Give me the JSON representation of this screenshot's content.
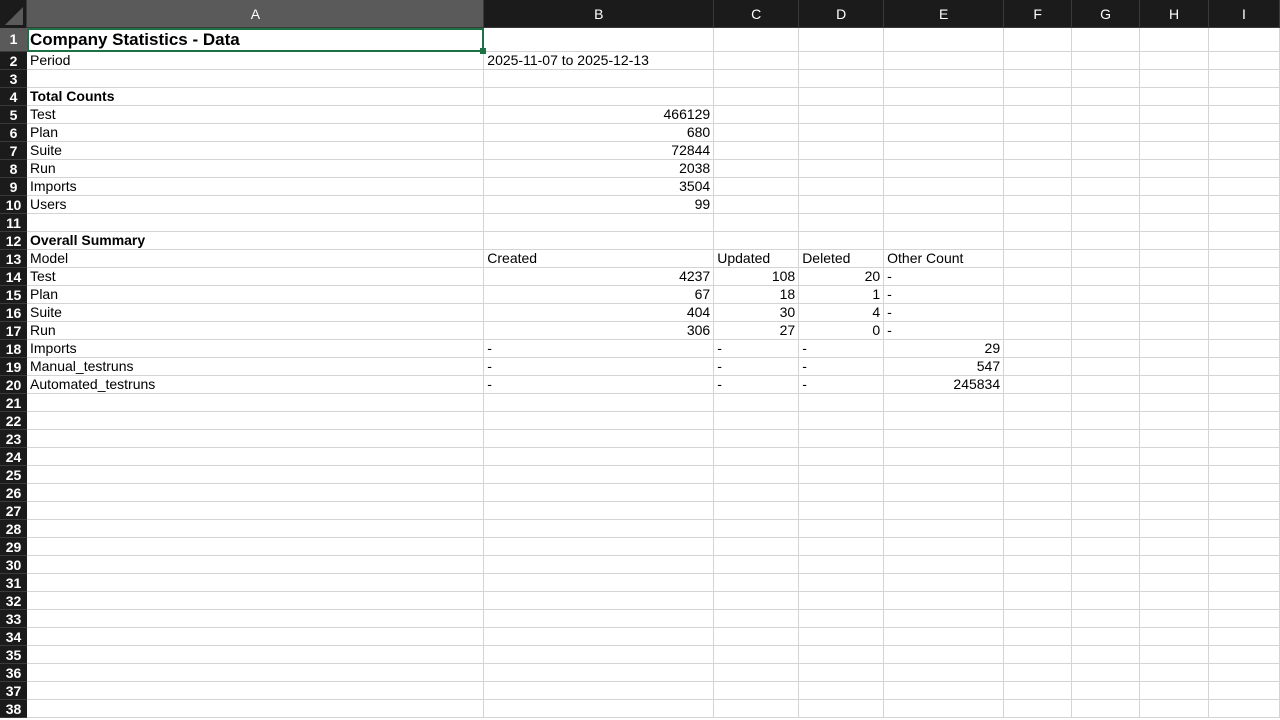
{
  "columns": [
    "A",
    "B",
    "C",
    "D",
    "E",
    "F",
    "G",
    "H",
    "I"
  ],
  "selected_column": "A",
  "active_cell": "A1",
  "row_count": 38,
  "rows": {
    "1": [
      "Company Statistics - Data"
    ],
    "2": [
      "Period",
      "2025-11-07 to 2025-12-13"
    ],
    "4": [
      "Total Counts"
    ],
    "5": [
      "Test",
      466129
    ],
    "6": [
      "Plan",
      680
    ],
    "7": [
      "Suite",
      72844
    ],
    "8": [
      "Run",
      2038
    ],
    "9": [
      "Imports",
      3504
    ],
    "10": [
      "Users",
      99
    ],
    "12": [
      "Overall Summary"
    ],
    "13": [
      "Model",
      "Created",
      "Updated",
      "Deleted",
      "Other Count"
    ],
    "14": [
      "Test",
      4237,
      108,
      20,
      "-"
    ],
    "15": [
      "Plan",
      67,
      18,
      1,
      "-"
    ],
    "16": [
      "Suite",
      404,
      30,
      4,
      "-"
    ],
    "17": [
      "Run",
      306,
      27,
      0,
      "-"
    ],
    "18": [
      "Imports",
      "-",
      "-",
      "-",
      29
    ],
    "19": [
      "Manual_testruns",
      "-",
      "-",
      "-",
      547
    ],
    "20": [
      "Automated_testruns",
      "-",
      "-",
      "-",
      245834
    ]
  },
  "bold_rows": [
    "4",
    "12"
  ],
  "title_row": "1",
  "colors": {
    "header_bg": "#1b1b1b",
    "selected_header": "#5a5a5a",
    "selection": "#1e7145",
    "grid": "#d4d4d4"
  }
}
